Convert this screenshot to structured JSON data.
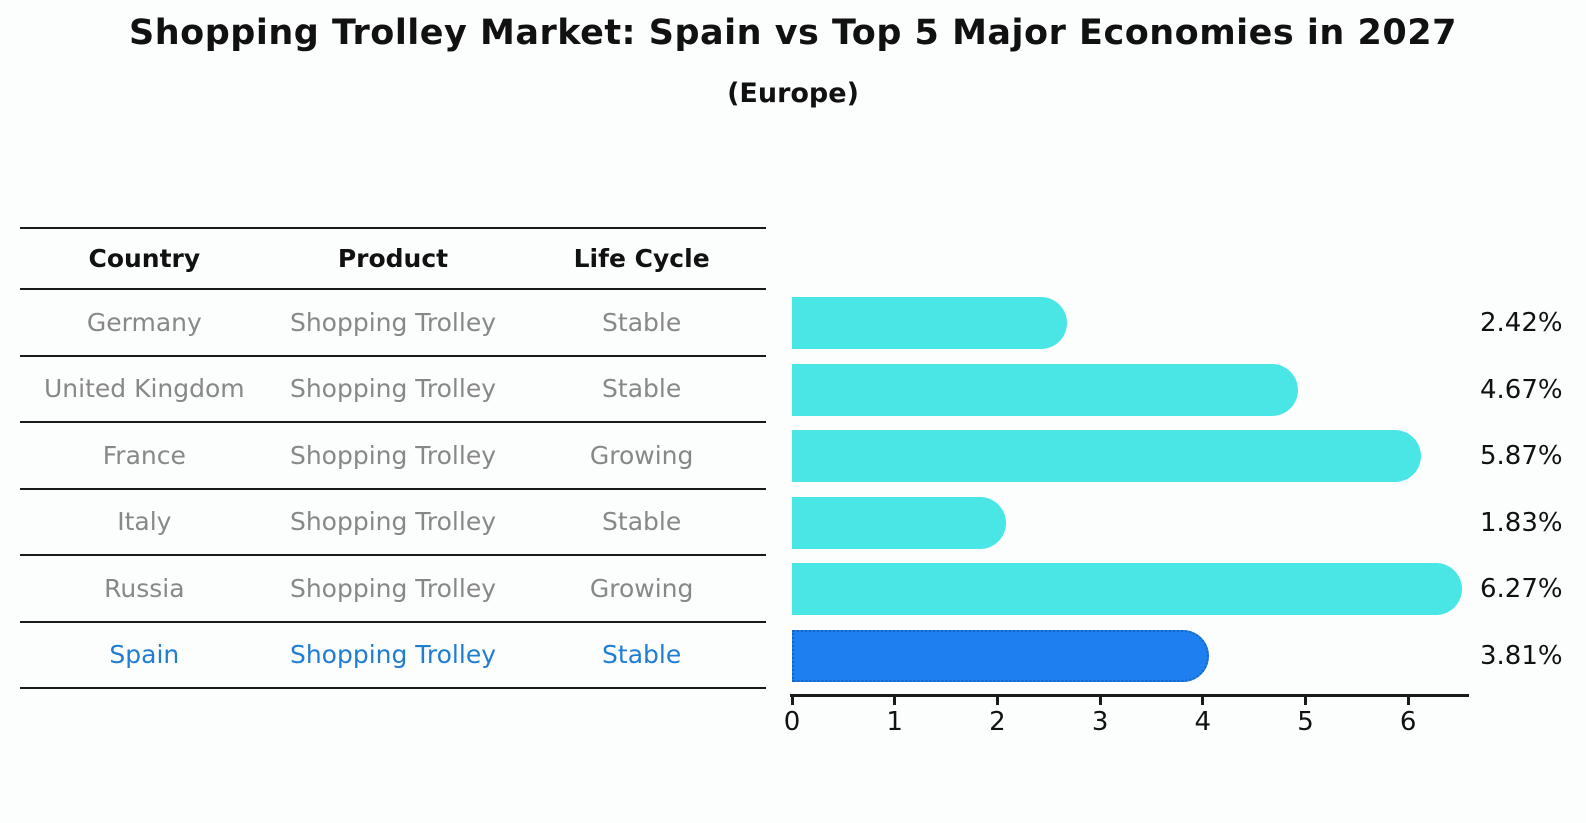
{
  "title": "Shopping Trolley Market: Spain vs Top 5 Major Economies in 2027",
  "subtitle": "(Europe)",
  "colors": {
    "bar": "#4ae6e6",
    "highlight_bar": "#1e80f0",
    "highlight_bar_border": "#1565c8",
    "highlight_text": "#1f7dd2",
    "row_text": "#888888",
    "axis": "#1a1a1a"
  },
  "table": {
    "headers": [
      "Country",
      "Product",
      "Life Cycle"
    ],
    "rows": [
      {
        "country": "Germany",
        "product": "Shopping Trolley",
        "life_cycle": "Stable"
      },
      {
        "country": "United Kingdom",
        "product": "Shopping Trolley",
        "life_cycle": "Stable"
      },
      {
        "country": "France",
        "product": "Shopping Trolley",
        "life_cycle": "Growing"
      },
      {
        "country": "Italy",
        "product": "Shopping Trolley",
        "life_cycle": "Stable"
      },
      {
        "country": "Russia",
        "product": "Shopping Trolley",
        "life_cycle": "Growing"
      },
      {
        "country": "Spain",
        "product": "Shopping Trolley",
        "life_cycle": "Stable"
      }
    ]
  },
  "chart_data": {
    "type": "bar",
    "orientation": "horizontal",
    "title": "Shopping Trolley Market: Spain vs Top 5 Major Economies in 2027 (Europe)",
    "categories": [
      "Germany",
      "United Kingdom",
      "France",
      "Italy",
      "Russia",
      "Spain"
    ],
    "values": [
      2.42,
      4.67,
      5.87,
      1.83,
      6.27,
      3.81
    ],
    "value_labels": [
      "2.42%",
      "4.67%",
      "5.87%",
      "1.83%",
      "6.27%",
      "3.81%"
    ],
    "highlight_index": 5,
    "x_ticks": [
      "0",
      "1",
      "2",
      "3",
      "4",
      "5",
      "6"
    ],
    "xlim": [
      0,
      6.6
    ],
    "grid": false,
    "legend": "none"
  }
}
